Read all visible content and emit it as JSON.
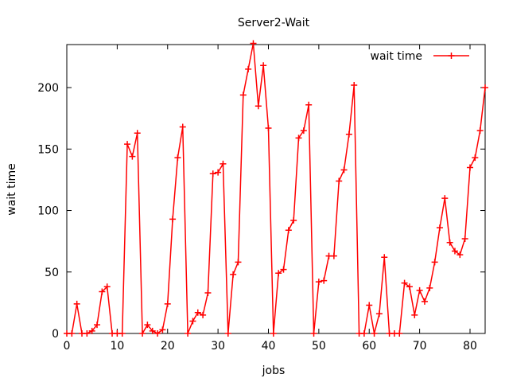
{
  "chart_data": {
    "type": "line",
    "title": "Server2-Wait",
    "xlabel": "jobs",
    "ylabel": "wait time",
    "xlim": [
      0,
      83
    ],
    "ylim": [
      0,
      235
    ],
    "xticks": [
      0,
      10,
      20,
      30,
      40,
      50,
      60,
      70,
      80
    ],
    "yticks": [
      0,
      50,
      100,
      150,
      200
    ],
    "grid": false,
    "legend_position": "top-right",
    "colors": {
      "series": "#ff0000",
      "axes": "#000000"
    },
    "series": [
      {
        "name": "wait time",
        "marker": "plus",
        "x": [
          0,
          1,
          2,
          3,
          4,
          5,
          6,
          7,
          8,
          9,
          10,
          11,
          12,
          13,
          14,
          15,
          16,
          17,
          18,
          19,
          20,
          21,
          22,
          23,
          24,
          25,
          26,
          27,
          28,
          29,
          30,
          31,
          32,
          33,
          34,
          35,
          36,
          37,
          38,
          39,
          40,
          41,
          42,
          43,
          44,
          45,
          46,
          47,
          48,
          49,
          50,
          51,
          52,
          53,
          54,
          55,
          56,
          57,
          58,
          59,
          60,
          61,
          62,
          63,
          64,
          65,
          66,
          67,
          68,
          69,
          70,
          71,
          72,
          73,
          74,
          75,
          76,
          77,
          78,
          79,
          80,
          81,
          82,
          83
        ],
        "values": [
          0,
          0,
          24,
          0,
          0,
          2,
          7,
          34,
          38,
          0,
          0,
          0,
          154,
          144,
          163,
          0,
          7,
          2,
          0,
          3,
          24,
          93,
          143,
          168,
          0,
          10,
          17,
          15,
          33,
          130,
          131,
          138,
          0,
          48,
          58,
          194,
          215,
          236,
          185,
          218,
          167,
          0,
          49,
          52,
          84,
          92,
          159,
          165,
          186,
          0,
          42,
          43,
          63,
          63,
          124,
          133,
          162,
          202,
          0,
          0,
          23,
          0,
          16,
          62,
          0,
          0,
          0,
          41,
          38,
          15,
          35,
          26,
          37,
          58,
          86,
          110,
          74,
          67,
          64,
          77,
          135,
          143,
          165,
          200
        ]
      }
    ]
  }
}
